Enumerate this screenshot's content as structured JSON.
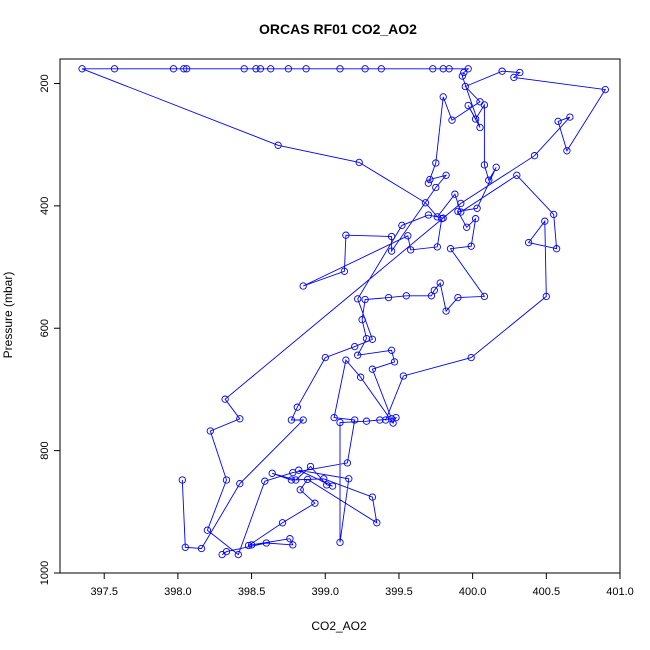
{
  "chart_data": {
    "type": "line",
    "title": "ORCAS RF01 CO2_AO2",
    "xlabel": "CO2_AO2",
    "ylabel": "Pressure (mbar)",
    "xlim": [
      397.2,
      401.0
    ],
    "ylim": [
      1000,
      160
    ],
    "y_reversed": true,
    "x_ticks": [
      397.5,
      398.0,
      398.5,
      399.0,
      399.5,
      400.0,
      400.5,
      401.0
    ],
    "x_tick_labels": [
      "397.5",
      "398.0",
      "398.5",
      "399.0",
      "399.5",
      "400.0",
      "400.5",
      "401.0"
    ],
    "y_ticks": [
      200,
      400,
      600,
      800,
      1000
    ],
    "y_tick_labels": [
      "200",
      "400",
      "600",
      "800",
      "1000"
    ],
    "grid": false,
    "marker": "open-circle",
    "series": [
      {
        "color": "#0000ff",
        "points": [
          [
            398.3,
            970
          ],
          [
            398.33,
            965
          ],
          [
            398.6,
            951
          ],
          [
            398.78,
            954
          ],
          [
            398.76,
            944
          ],
          [
            398.5,
            954
          ],
          [
            398.48,
            955
          ],
          [
            398.71,
            918
          ],
          [
            398.93,
            886
          ],
          [
            398.83,
            864
          ],
          [
            398.88,
            847
          ],
          [
            399.35,
            918
          ],
          [
            399.32,
            876
          ],
          [
            398.99,
            846
          ],
          [
            398.77,
            848
          ],
          [
            398.64,
            837
          ],
          [
            398.8,
            848
          ],
          [
            398.9,
            826
          ],
          [
            399.01,
            856
          ],
          [
            399.05,
            858
          ],
          [
            398.82,
            832
          ],
          [
            399.16,
            846
          ],
          [
            399.1,
            950
          ],
          [
            399.1,
            754
          ],
          [
            399.28,
            752
          ],
          [
            399.37,
            750
          ],
          [
            399.45,
            748
          ],
          [
            399.32,
            667
          ],
          [
            399.47,
            655
          ],
          [
            399.45,
            636
          ],
          [
            399.22,
            644
          ],
          [
            399.28,
            617
          ],
          [
            399.25,
            586
          ],
          [
            399.27,
            553
          ],
          [
            399.43,
            550
          ],
          [
            399.55,
            547
          ],
          [
            399.72,
            547
          ],
          [
            399.74,
            538
          ],
          [
            399.78,
            526
          ],
          [
            399.82,
            572
          ],
          [
            399.9,
            550
          ],
          [
            400.08,
            548
          ],
          [
            399.85,
            470
          ],
          [
            399.99,
            466
          ],
          [
            400.02,
            421
          ],
          [
            399.96,
            435
          ],
          [
            399.9,
            409
          ],
          [
            400.03,
            404
          ],
          [
            400.16,
            337
          ],
          [
            400.11,
            358
          ],
          [
            400.08,
            333
          ],
          [
            400.08,
            235
          ],
          [
            400.02,
            258
          ],
          [
            399.97,
            236
          ],
          [
            400.05,
            272
          ],
          [
            399.93,
            188
          ],
          [
            399.94,
            182
          ],
          [
            399.97,
            176
          ],
          [
            399.84,
            176
          ],
          [
            399.8,
            176
          ],
          [
            399.73,
            176
          ],
          [
            399.38,
            176
          ],
          [
            399.27,
            176
          ],
          [
            399.1,
            176
          ],
          [
            398.87,
            176
          ],
          [
            398.75,
            176
          ],
          [
            398.63,
            176
          ],
          [
            398.56,
            176
          ],
          [
            398.53,
            176
          ],
          [
            398.45,
            176
          ],
          [
            398.06,
            176
          ],
          [
            398.04,
            176
          ],
          [
            397.97,
            176
          ],
          [
            397.57,
            176
          ],
          [
            397.35,
            176
          ],
          [
            398.68,
            301
          ],
          [
            399.23,
            329
          ],
          [
            399.68,
            395
          ],
          [
            399.76,
            418
          ],
          [
            399.88,
            381
          ],
          [
            399.92,
            410
          ],
          [
            400.3,
            350
          ],
          [
            400.55,
            414
          ],
          [
            400.57,
            470
          ],
          [
            400.38,
            460
          ],
          [
            400.49,
            425
          ],
          [
            400.5,
            548
          ],
          [
            399.99,
            648
          ],
          [
            399.53,
            678
          ],
          [
            399.41,
            750
          ],
          [
            399.48,
            746
          ],
          [
            399.46,
            755
          ],
          [
            399.24,
            680
          ],
          [
            399.14,
            652
          ],
          [
            399.06,
            746
          ],
          [
            399.2,
            750
          ],
          [
            399.15,
            820
          ],
          [
            398.78,
            836
          ],
          [
            398.59,
            850
          ],
          [
            398.41,
            970
          ],
          [
            398.2,
            930
          ],
          [
            398.33,
            848
          ],
          [
            398.22,
            768
          ],
          [
            398.42,
            748
          ],
          [
            398.32,
            716
          ],
          [
            399.92,
            396
          ],
          [
            400.42,
            318
          ],
          [
            400.66,
            255
          ],
          [
            400.58,
            262
          ],
          [
            400.64,
            310
          ],
          [
            400.9,
            210
          ],
          [
            400.28,
            190
          ],
          [
            400.32,
            182
          ],
          [
            400.2,
            180
          ],
          [
            399.95,
            205
          ],
          [
            400.05,
            230
          ],
          [
            399.86,
            260
          ],
          [
            399.8,
            222
          ],
          [
            399.75,
            330
          ],
          [
            399.7,
            363
          ],
          [
            399.71,
            357
          ],
          [
            399.82,
            350
          ],
          [
            399.75,
            370
          ],
          [
            399.45,
            474
          ],
          [
            399.45,
            450
          ],
          [
            399.14,
            448
          ],
          [
            399.13,
            507
          ],
          [
            398.85,
            531
          ],
          [
            399.56,
            449
          ],
          [
            399.58,
            472
          ],
          [
            399.76,
            467
          ],
          [
            399.79,
            421
          ],
          [
            399.8,
            420
          ],
          [
            399.7,
            415
          ],
          [
            399.52,
            432
          ],
          [
            399.22,
            552
          ],
          [
            399.32,
            618
          ],
          [
            399.2,
            630
          ],
          [
            399.0,
            648
          ],
          [
            398.81,
            729
          ],
          [
            398.77,
            750
          ],
          [
            398.85,
            750
          ],
          [
            398.42,
            854
          ],
          [
            398.16,
            960
          ],
          [
            398.05,
            958
          ],
          [
            398.03,
            848
          ]
        ]
      }
    ]
  }
}
